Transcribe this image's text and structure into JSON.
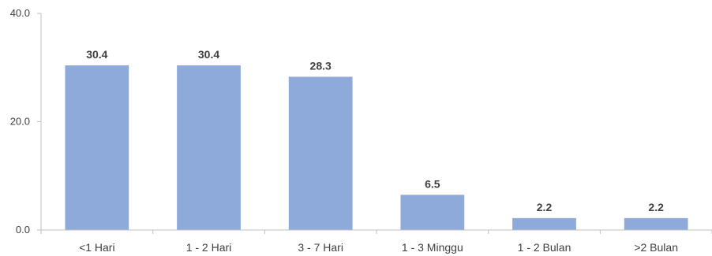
{
  "chart_data": {
    "type": "bar",
    "categories": [
      "<1 Hari",
      "1 - 2 Hari",
      "3 - 7 Hari",
      "1 - 3 Minggu",
      "1 - 2 Bulan",
      ">2 Bulan"
    ],
    "values": [
      30.4,
      30.4,
      28.3,
      6.5,
      2.2,
      2.2
    ],
    "data_labels": [
      "30.4",
      "30.4",
      "28.3",
      "6.5",
      "2.2",
      "2.2"
    ],
    "yticks": [
      "0.0",
      "20.0",
      "40.0"
    ],
    "ytick_values": [
      0,
      20,
      40
    ],
    "ylim": [
      0,
      40
    ],
    "grid": false,
    "bar_color": "#8eaadb",
    "axis_color": "#bfbfbf",
    "text_color": "#404040"
  }
}
